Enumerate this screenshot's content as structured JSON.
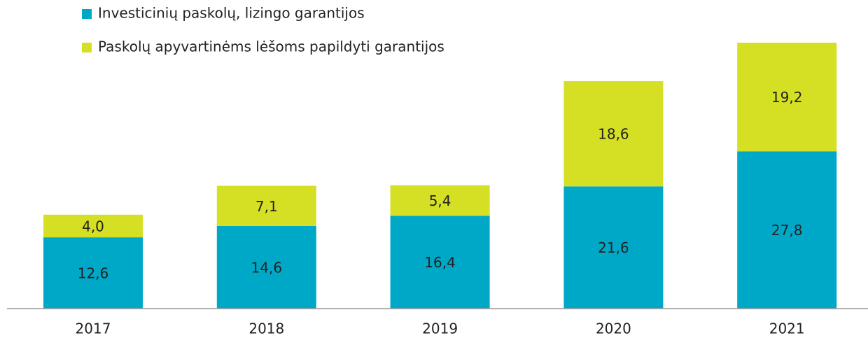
{
  "chart_data": {
    "type": "stacked_bar",
    "categories": [
      "2017",
      "2018",
      "2019",
      "2020",
      "2021"
    ],
    "series": [
      {
        "name": "Investicinių paskolų, lizingo garantijos",
        "color": "#00a8c8",
        "values": [
          12.6,
          14.6,
          16.4,
          21.6,
          27.8
        ],
        "value_labels": [
          "12,6",
          "14,6",
          "16,4",
          "21,6",
          "27,8"
        ]
      },
      {
        "name": "Paskolų apyvartinėms lėšoms papildyti garantijos",
        "color": "#d5df24",
        "values": [
          4.0,
          7.1,
          5.4,
          18.6,
          19.2
        ],
        "value_labels": [
          "4,0",
          "7,1",
          "5,4",
          "18,6",
          "19,2"
        ]
      }
    ]
  }
}
